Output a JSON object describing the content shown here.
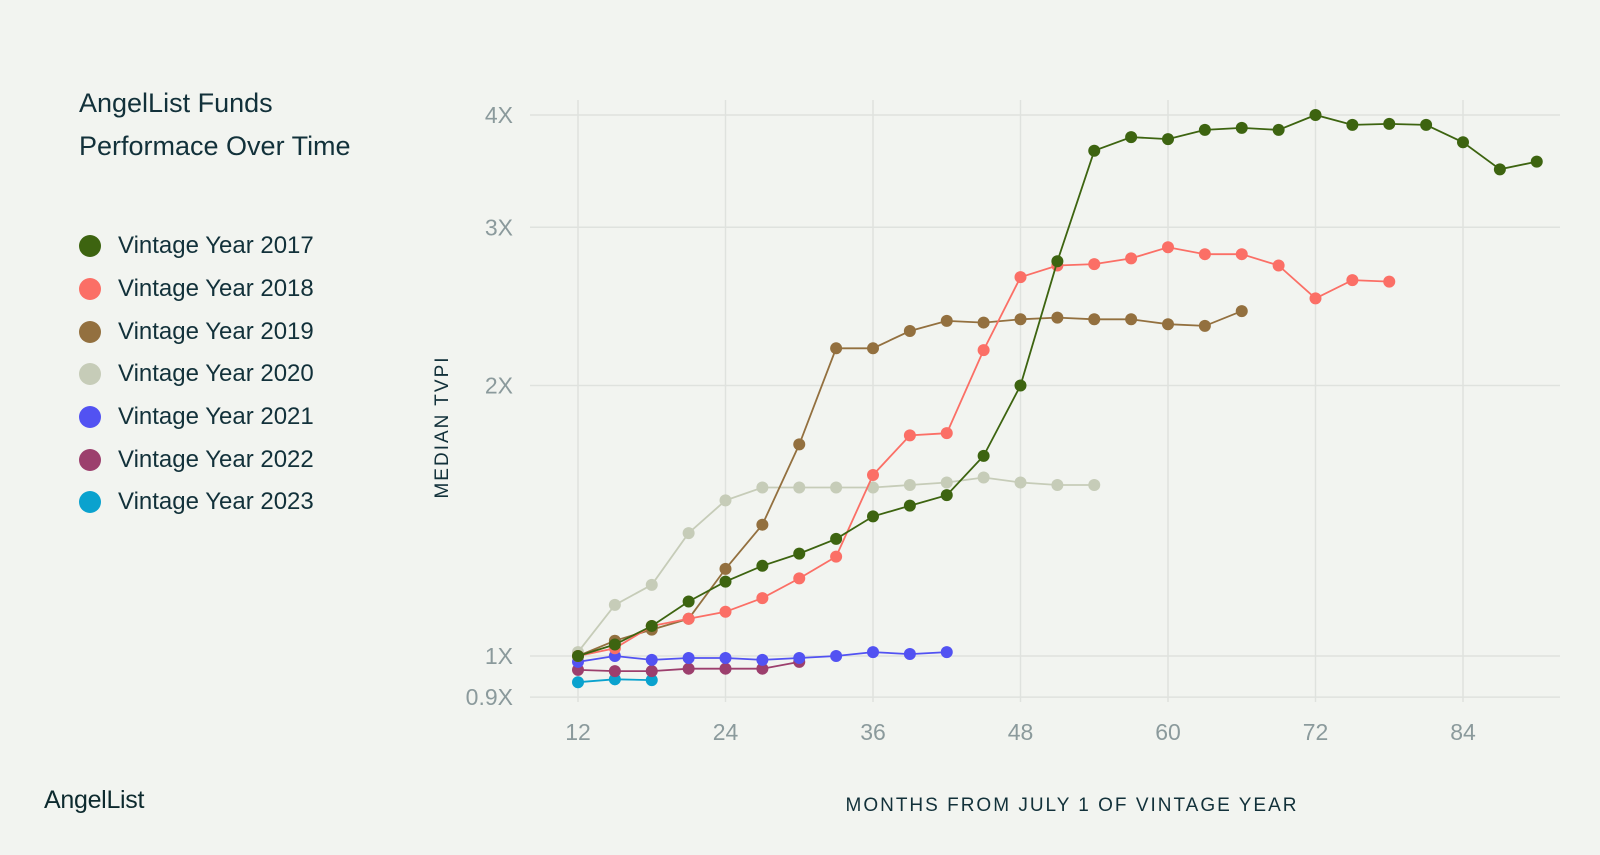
{
  "title_lines": [
    "AngelList Funds",
    "Performace Over Time"
  ],
  "brand": "AngelList",
  "chart_data": {
    "type": "line",
    "title": "AngelList Funds Performace Over Time",
    "xlabel": "MONTHS FROM JULY 1 OF VINTAGE YEAR",
    "ylabel": "MEDIAN TVPI",
    "y_scale": "log",
    "xlim": [
      8,
      92
    ],
    "ylim": [
      0.9,
      4.1
    ],
    "x_ticks": [
      12,
      24,
      36,
      48,
      60,
      72,
      84
    ],
    "x_tick_labels": [
      "12",
      "24",
      "36",
      "48",
      "60",
      "72",
      "84"
    ],
    "y_ticks": [
      0.9,
      1,
      2,
      3,
      4
    ],
    "y_tick_labels": [
      "0.9X",
      "1X",
      "2X",
      "3X",
      "4X"
    ],
    "grid": true,
    "legend_position": "left",
    "series": [
      {
        "name": "Vintage Year 2017",
        "color": "#3d6410",
        "x": [
          12,
          15,
          18,
          21,
          24,
          27,
          30,
          33,
          36,
          39,
          42,
          45,
          48,
          51,
          54,
          57,
          60,
          63,
          66,
          69,
          72,
          75,
          78,
          81,
          84,
          87,
          90
        ],
        "y": [
          1.0,
          1.03,
          1.08,
          1.15,
          1.21,
          1.26,
          1.3,
          1.35,
          1.43,
          1.47,
          1.51,
          1.67,
          2.0,
          2.75,
          3.65,
          3.78,
          3.76,
          3.85,
          3.87,
          3.85,
          4.0,
          3.9,
          3.91,
          3.9,
          3.73,
          3.48,
          3.55
        ]
      },
      {
        "name": "Vintage Year 2018",
        "color": "#fb6f66",
        "x": [
          12,
          15,
          18,
          21,
          24,
          27,
          30,
          33,
          36,
          39,
          42,
          45,
          48,
          51,
          54,
          57,
          60,
          63,
          66,
          69,
          72,
          75,
          78
        ],
        "y": [
          1.0,
          1.02,
          1.08,
          1.1,
          1.12,
          1.16,
          1.22,
          1.29,
          1.59,
          1.76,
          1.77,
          2.19,
          2.64,
          2.72,
          2.73,
          2.77,
          2.85,
          2.8,
          2.8,
          2.72,
          2.5,
          2.62,
          2.61
        ]
      },
      {
        "name": "Vintage Year 2019",
        "color": "#93703f",
        "x": [
          12,
          15,
          18,
          21,
          24,
          27,
          30,
          33,
          36,
          39,
          42,
          45,
          48,
          51,
          54,
          57,
          60,
          63,
          66
        ],
        "y": [
          1.0,
          1.04,
          1.07,
          1.1,
          1.25,
          1.4,
          1.72,
          2.2,
          2.2,
          2.3,
          2.36,
          2.35,
          2.37,
          2.38,
          2.37,
          2.37,
          2.34,
          2.33,
          2.42
        ]
      },
      {
        "name": "Vintage Year 2020",
        "color": "#c6ccb8",
        "x": [
          12,
          15,
          18,
          21,
          24,
          27,
          30,
          33,
          36,
          39,
          42,
          45,
          48,
          51,
          54
        ],
        "y": [
          1.01,
          1.14,
          1.2,
          1.37,
          1.49,
          1.54,
          1.54,
          1.54,
          1.54,
          1.55,
          1.56,
          1.58,
          1.56,
          1.55,
          1.55
        ]
      },
      {
        "name": "Vintage Year 2021",
        "color": "#5252f2",
        "x": [
          12,
          15,
          18,
          21,
          24,
          27,
          30,
          33,
          36,
          39,
          42
        ],
        "y": [
          0.985,
          1.0,
          0.99,
          0.995,
          0.995,
          0.99,
          0.995,
          1.0,
          1.01,
          1.005,
          1.01
        ]
      },
      {
        "name": "Vintage Year 2022",
        "color": "#9c3f6d",
        "x": [
          12,
          15,
          18,
          21,
          24,
          27,
          30
        ],
        "y": [
          0.965,
          0.962,
          0.962,
          0.968,
          0.968,
          0.968,
          0.985
        ]
      },
      {
        "name": "Vintage Year 2023",
        "color": "#0aa2ce",
        "x": [
          12,
          15,
          18
        ],
        "y": [
          0.935,
          0.942,
          0.94
        ]
      }
    ]
  }
}
